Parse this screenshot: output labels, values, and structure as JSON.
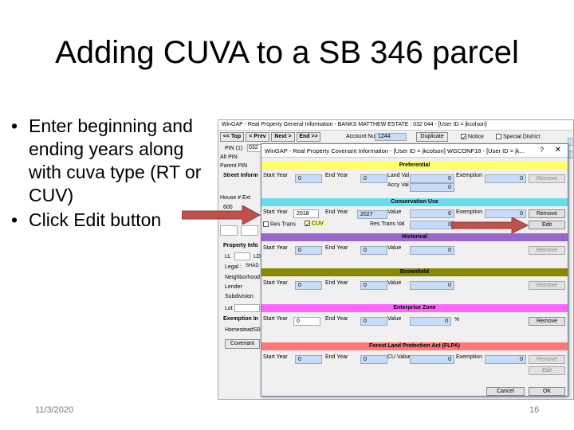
{
  "slide": {
    "title": "Adding CUVA to a SB 346 parcel",
    "bullets": [
      "Enter beginning and ending years along with cuva type (RT or CUV)",
      "Click Edit button"
    ],
    "date": "11/3/2020",
    "page": "16"
  },
  "colors": {
    "arrow": "#c0504d",
    "preferential": "#ffff66",
    "conservation": "#66ddee",
    "historical": "#9966cc",
    "brownfield": "#888800",
    "enterprise": "#ff66ff",
    "flpa": "#ff7777"
  },
  "bg_window": {
    "title": "WinGAP - Real Property General Information - BANKS MATTHEW ESTATE : 032  044",
    "account_label": "Account Number",
    "account_value": "1244",
    "user": "- [User ID = jkcolson]",
    "toolbar": {
      "top": "<< Top",
      "prev": "< Prev",
      "next": "Next >",
      "end": "End >>",
      "duplicate": "Duplicate",
      "notice": "Notice",
      "special": "Special District"
    },
    "pin_label": "PIN (1)",
    "pin_value": "032",
    "alt_pin": "Alt PIN",
    "parent_pin": "Parent PIN",
    "street_info": "Street Inform",
    "house": "House #",
    "ext": "Ext",
    "house_value": "600",
    "property_info": "Property Info",
    "ll": "LL",
    "ld": "LD",
    "legal": "Legal :",
    "legal_value": "SHAD",
    "neighborhood": "Neighborhood",
    "lender": "Lender",
    "subdivision": "Subdivision",
    "lot": "Lot",
    "exemption_info": "Exemption In",
    "homestead": "Homestead",
    "homestead_value": "S0",
    "covenant": "Covenant"
  },
  "dialog": {
    "title": "WinGAP - Real Property Covenant Information - [User ID = jkcolson] WGCONF18 - [User ID = jk...",
    "help": "?",
    "close": "✕",
    "preferential": {
      "header": "Preferential",
      "start_year_label": "Start Year",
      "start_year": "0",
      "end_year_label": "End Year",
      "end_year": "0",
      "land_val_label": "Land Val",
      "land_val": "0",
      "accy_val_label": "Accy Val",
      "accy_val": "0",
      "exemption_label": "Exemption",
      "exemption": "0",
      "remove": "Remove"
    },
    "conservation": {
      "header": "Conservation Use",
      "start_year_label": "Start Year",
      "start_year": "2018",
      "end_year_label": "End Year",
      "end_year": "2027",
      "value_label": "Value",
      "value": "0",
      "exemption_label": "Exemption",
      "exemption": "0",
      "res_trans": "Res Trans",
      "cuv": "CUV",
      "res_trans_val_label": "Res Trans Val",
      "res_trans_val": "0",
      "remove": "Remove",
      "edit": "Edit"
    },
    "historical": {
      "header": "Historical",
      "start_year_label": "Start Year",
      "start_year": "0",
      "end_year_label": "End Year",
      "end_year": "0",
      "value_label": "Value",
      "value": "0",
      "remove": "Remove"
    },
    "brownfield": {
      "header": "Brownfield",
      "start_year_label": "Start Year",
      "start_year": "0",
      "end_year_label": "End Year",
      "end_year": "0",
      "value_label": "Value",
      "value": "0",
      "remove": "Remove"
    },
    "enterprise": {
      "header": "Enterprise Zone",
      "start_year_label": "Start Year",
      "start_year": "0",
      "end_year_label": "End Year",
      "end_year": "0",
      "value_label": "Value",
      "value": "0",
      "percent": "%",
      "remove": "Remove"
    },
    "flpa": {
      "header": "Forest Land Protection Act (FLPA)",
      "start_year_label": "Start Year",
      "start_year": "0",
      "end_year_label": "End Year",
      "end_year": "0",
      "cu_value_label": "CU Value",
      "cu_value": "0",
      "exemption_label": "Exemption",
      "exemption": "0",
      "remove": "Remove",
      "edit": "Edit"
    },
    "cancel": "Cancel",
    "ok": "OK"
  }
}
